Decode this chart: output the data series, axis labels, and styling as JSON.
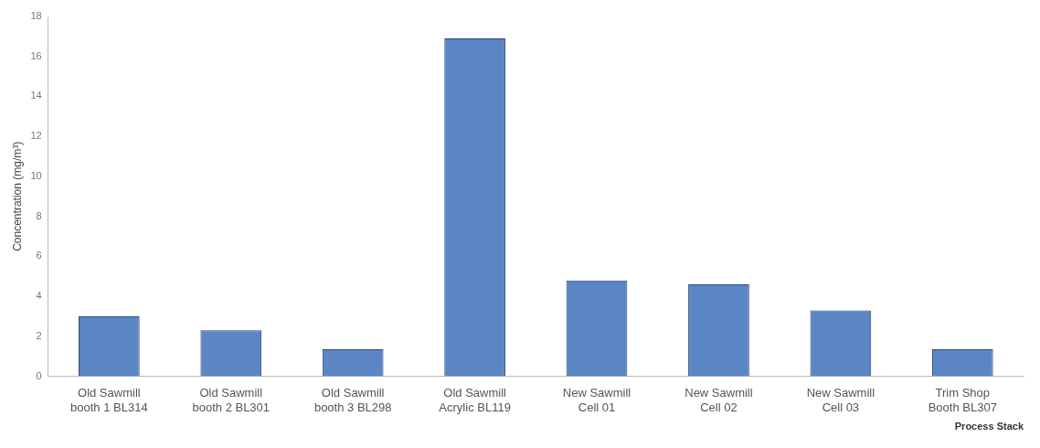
{
  "chart_data": {
    "type": "bar",
    "xlabel": "Process Stack",
    "ylabel": "Concentration (mg/m³)",
    "categories": [
      "Old Sawmill booth 1 BL314",
      "Old Sawmill booth 2 BL301",
      "Old Sawmill booth 3 BL298",
      "Old Sawmill Acrylic BL119",
      "New Sawmill Cell 01",
      "New Sawmill Cell 02",
      "New Sawmill Cell 03",
      "Trim Shop Booth BL307"
    ],
    "values": [
      3.0,
      2.3,
      1.35,
      16.9,
      4.8,
      4.6,
      3.3,
      1.35
    ],
    "color": "#5b86c5",
    "ylim": [
      0,
      18
    ],
    "yticks": [
      0,
      2,
      4,
      6,
      8,
      10,
      12,
      14,
      16,
      18
    ],
    "grid": false,
    "legend": false
  }
}
